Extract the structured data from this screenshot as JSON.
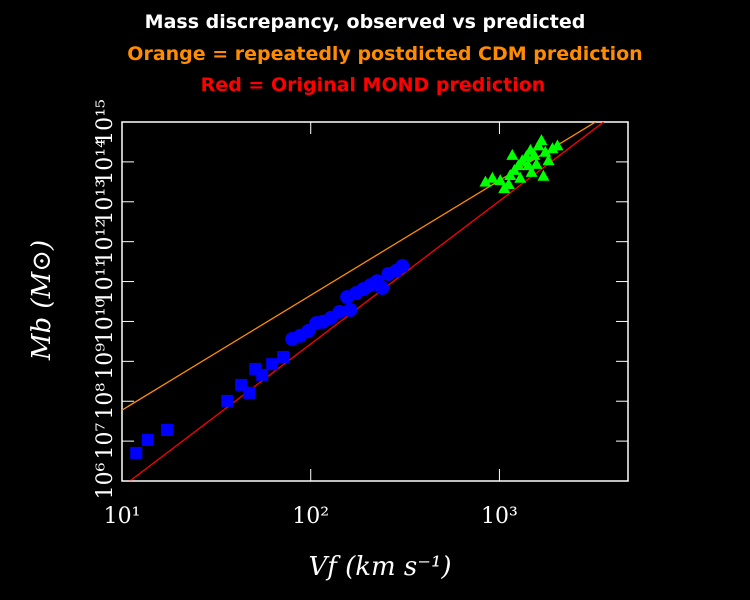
{
  "chart_data": {
    "type": "scatter",
    "title": "Mass discrepancy, observed vs predicted",
    "subtitles": [
      {
        "text": "Orange = repeatedly postdicted CDM prediction",
        "color": "#ff8c00"
      },
      {
        "text": "Red = Original MOND prediction",
        "color": "#ff0000"
      }
    ],
    "title_color": "#ffffff",
    "x_label": "Vf (km s⁻¹)",
    "y_label": "Mb (M⊙)",
    "log_x": true,
    "log_y": true,
    "xlim": [
      10,
      4800
    ],
    "ylim": [
      1000000,
      1000000000000000
    ],
    "xticks": [
      {
        "value": 10,
        "label": "10¹"
      },
      {
        "value": 100,
        "label": "10²"
      },
      {
        "value": 1000,
        "label": "10³"
      }
    ],
    "yticks": [
      {
        "value": 1000000,
        "label": "10⁶"
      },
      {
        "value": 10000000,
        "label": "10⁷"
      },
      {
        "value": 100000000,
        "label": "10⁸"
      },
      {
        "value": 1000000000,
        "label": "10⁹"
      },
      {
        "value": 10000000000,
        "label": "10¹⁰"
      },
      {
        "value": 100000000000,
        "label": "10¹¹"
      },
      {
        "value": 1000000000000,
        "label": "10¹²"
      },
      {
        "value": 10000000000000,
        "label": "10¹³"
      },
      {
        "value": 100000000000000,
        "label": "10¹⁴"
      },
      {
        "value": 1000000000000000,
        "label": "10¹⁵"
      }
    ],
    "series": [
      {
        "marker": "line",
        "color": "#ff8c00",
        "x": [
          10,
          3230
        ],
        "values": [
          60000000,
          1000000000000000
        ]
      },
      {
        "marker": "line",
        "color": "#ff0000",
        "x": [
          11,
          3565
        ],
        "values": [
          1000000,
          1000000000000000
        ]
      },
      {
        "marker": "square",
        "color": "#0000ff",
        "x": [
          11.9,
          13.7,
          17.3,
          36.1,
          42.8,
          47.2,
          50.8,
          55.3,
          62.5,
          71.5
        ],
        "values": [
          5060000,
          10700000,
          19000000,
          102000000,
          257000000,
          162000000,
          646000000,
          457000000,
          850000000,
          1290000000
        ]
      },
      {
        "marker": "circle",
        "color": "#0000ff",
        "x": [
          79.8,
          87.9,
          97,
          107,
          116,
          128,
          142,
          156,
          162,
          174,
          190,
          207,
          225,
          239,
          258,
          284,
          306
        ],
        "values": [
          3630000000,
          4370000000,
          5750000000,
          9100000000,
          9800000000,
          12300000000,
          17400000000,
          40700000000,
          19500000000,
          51300000000,
          64600000000,
          81000000000,
          102000000000,
          69000000000,
          155000000000,
          186000000000,
          245000000000
        ]
      },
      {
        "marker": "triangle",
        "color": "#00ff00",
        "x": [
          843,
          918,
          1010,
          1060,
          1140,
          1200,
          1260,
          1320,
          1390,
          1460,
          1530,
          1610,
          1670,
          1750,
          1820,
          1910,
          2030,
          1710,
          1480,
          1290,
          1120,
          1170,
          1420,
          1570
        ],
        "values": [
          32000000000000,
          40000000000000,
          35000000000000,
          22000000000000,
          47000000000000,
          63000000000000,
          83000000000000,
          110000000000000,
          140000000000000,
          200000000000000,
          150000000000000,
          260000000000000,
          350000000000000,
          180000000000000,
          110000000000000,
          220000000000000,
          260000000000000,
          45000000000000,
          56000000000000,
          40000000000000,
          28000000000000,
          150000000000000,
          83000000000000,
          89000000000000
        ]
      }
    ]
  }
}
